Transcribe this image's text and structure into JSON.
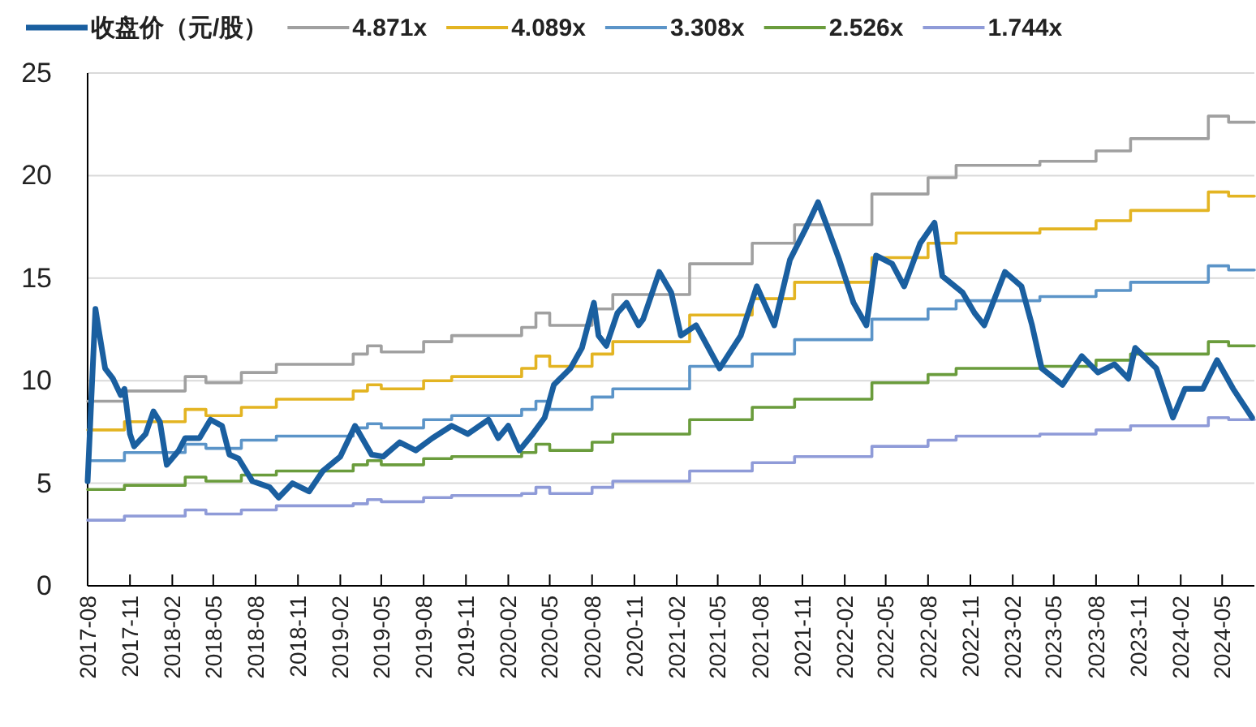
{
  "chart_data": {
    "type": "line",
    "xlim": [
      "2017-08",
      "2024-07-10"
    ],
    "xticks": [
      "2017-08",
      "2017-11",
      "2018-02",
      "2018-05",
      "2018-08",
      "2018-11",
      "2019-02",
      "2019-05",
      "2019-08",
      "2019-11",
      "2020-02",
      "2020-05",
      "2020-08",
      "2020-11",
      "2021-02",
      "2021-05",
      "2021-08",
      "2021-11",
      "2022-02",
      "2022-05",
      "2022-08",
      "2022-11",
      "2023-02",
      "2023-05",
      "2023-08",
      "2023-11",
      "2024-02",
      "2024-05"
    ],
    "ylim": [
      0,
      25
    ],
    "yticks": [
      0,
      5,
      10,
      15,
      20,
      25
    ],
    "grid": "y",
    "legend": "top",
    "series": [
      {
        "name": "收盘价（元/股）",
        "type": "line",
        "color": "#1a5fa0",
        "x": [
          "2017-08-01",
          "2017-08-10",
          "2017-08-18",
          "2017-08-25",
          "2017-09-08",
          "2017-09-25",
          "2017-10-12",
          "2017-10-20",
          "2017-11-01",
          "2017-11-10",
          "2017-12-05",
          "2017-12-22",
          "2018-01-05",
          "2018-01-20",
          "2018-02-15",
          "2018-03-01",
          "2018-04-01",
          "2018-04-25",
          "2018-05-20",
          "2018-06-05",
          "2018-06-25",
          "2018-07-25",
          "2018-09-01",
          "2018-09-20",
          "2018-10-20",
          "2018-11-25",
          "2018-12-25",
          "2019-02-01",
          "2019-03-05",
          "2019-04-10",
          "2019-05-05",
          "2019-06-10",
          "2019-07-15",
          "2019-08-20",
          "2019-10-01",
          "2019-11-05",
          "2019-12-20",
          "2020-01-10",
          "2020-02-01",
          "2020-02-25",
          "2020-03-25",
          "2020-04-20",
          "2020-05-10",
          "2020-06-15",
          "2020-07-10",
          "2020-08-05",
          "2020-08-15",
          "2020-09-01",
          "2020-09-25",
          "2020-10-15",
          "2020-11-10",
          "2020-11-20",
          "2020-12-25",
          "2021-01-20",
          "2021-02-10",
          "2021-03-15",
          "2021-05-05",
          "2021-06-20",
          "2021-07-25",
          "2021-09-01",
          "2021-10-05",
          "2021-11-10",
          "2021-12-05",
          "2021-12-25",
          "2022-01-20",
          "2022-02-20",
          "2022-03-20",
          "2022-04-10",
          "2022-05-15",
          "2022-06-10",
          "2022-07-15",
          "2022-08-15",
          "2022-09-01",
          "2022-10-15",
          "2022-11-10",
          "2022-12-01",
          "2023-01-15",
          "2023-02-20",
          "2023-03-15",
          "2023-04-05",
          "2023-05-20",
          "2023-07-01",
          "2023-08-05",
          "2023-09-10",
          "2023-10-10",
          "2023-10-25",
          "2023-12-10",
          "2024-01-15",
          "2024-02-10",
          "2024-03-20",
          "2024-04-20",
          "2024-05-25",
          "2024-07-05"
        ],
        "values": [
          5.1,
          9.6,
          13.5,
          12.5,
          10.6,
          10.1,
          9.3,
          9.6,
          7.4,
          6.8,
          7.4,
          8.5,
          8.0,
          5.9,
          6.6,
          7.2,
          7.2,
          8.1,
          7.8,
          6.4,
          6.2,
          5.1,
          4.8,
          4.3,
          5.0,
          4.6,
          5.6,
          6.3,
          7.8,
          6.4,
          6.3,
          7.0,
          6.6,
          7.2,
          7.8,
          7.4,
          8.1,
          7.2,
          7.8,
          6.6,
          7.4,
          8.2,
          9.8,
          10.6,
          11.6,
          13.8,
          12.2,
          11.7,
          13.3,
          13.8,
          12.7,
          13.0,
          15.3,
          14.3,
          12.2,
          12.7,
          10.6,
          12.2,
          14.6,
          12.7,
          15.9,
          17.5,
          18.7,
          17.5,
          15.9,
          13.8,
          12.7,
          16.1,
          15.7,
          14.6,
          16.7,
          17.7,
          15.1,
          14.3,
          13.3,
          12.7,
          15.3,
          14.6,
          12.7,
          10.6,
          9.8,
          11.2,
          10.4,
          10.8,
          10.1,
          11.6,
          10.6,
          8.2,
          9.6,
          9.6,
          11.0,
          9.6,
          8.2
        ]
      },
      {
        "name": "4.871x",
        "type": "step",
        "color": "#a0a0a0",
        "values": [
          9.0,
          9.5,
          10.2,
          9.9,
          10.4,
          10.8,
          11.3,
          11.7,
          11.4,
          11.9,
          12.2,
          12.6,
          13.3,
          12.7,
          13.5,
          14.2,
          15.7,
          16.7,
          17.6,
          19.1,
          19.9,
          20.5,
          20.7,
          21.2,
          21.8,
          22.9,
          22.6,
          22.6
        ]
      },
      {
        "name": "4.089x",
        "type": "step",
        "color": "#e3b422",
        "values": [
          7.6,
          8.0,
          8.6,
          8.3,
          8.7,
          9.1,
          9.5,
          9.8,
          9.6,
          10.0,
          10.2,
          10.6,
          11.2,
          10.7,
          11.3,
          11.9,
          13.2,
          14.0,
          14.8,
          16.0,
          16.7,
          17.2,
          17.4,
          17.8,
          18.3,
          19.2,
          19.0,
          19.0
        ]
      },
      {
        "name": "3.308x",
        "type": "step",
        "color": "#5b94c8",
        "values": [
          6.1,
          6.5,
          6.9,
          6.7,
          7.1,
          7.3,
          7.7,
          7.9,
          7.7,
          8.1,
          8.3,
          8.6,
          9.0,
          8.6,
          9.2,
          9.6,
          10.7,
          11.3,
          12.0,
          13.0,
          13.5,
          13.9,
          14.1,
          14.4,
          14.8,
          15.6,
          15.4,
          15.4
        ]
      },
      {
        "name": "2.526x",
        "type": "step",
        "color": "#6a9c3c",
        "values": [
          4.7,
          4.9,
          5.3,
          5.1,
          5.4,
          5.6,
          5.9,
          6.1,
          5.9,
          6.2,
          6.3,
          6.5,
          6.9,
          6.6,
          7.0,
          7.4,
          8.1,
          8.7,
          9.1,
          9.9,
          10.3,
          10.6,
          10.7,
          11.0,
          11.3,
          11.9,
          11.7,
          11.7
        ]
      },
      {
        "name": "1.744x",
        "type": "step",
        "color": "#8f9bd8",
        "values": [
          3.2,
          3.4,
          3.7,
          3.5,
          3.7,
          3.9,
          4.0,
          4.2,
          4.1,
          4.3,
          4.4,
          4.5,
          4.8,
          4.5,
          4.8,
          5.1,
          5.6,
          6.0,
          6.3,
          6.8,
          7.1,
          7.3,
          7.4,
          7.6,
          7.8,
          8.2,
          8.1,
          8.1
        ]
      }
    ],
    "x": [
      "2017-08-01",
      "2017-10-20",
      "2018-03-01",
      "2018-04-15",
      "2018-07-01",
      "2018-09-15",
      "2019-03-01",
      "2019-04-01",
      "2019-05-01",
      "2019-08-01",
      "2019-10-01",
      "2020-03-01",
      "2020-04-01",
      "2020-05-01",
      "2020-08-01",
      "2020-09-15",
      "2021-03-01",
      "2021-07-15",
      "2021-10-15",
      "2022-04-01",
      "2022-08-01",
      "2022-10-01",
      "2023-04-01",
      "2023-08-01",
      "2023-10-15",
      "2024-04-01",
      "2024-05-15",
      "2024-07-10"
    ]
  }
}
